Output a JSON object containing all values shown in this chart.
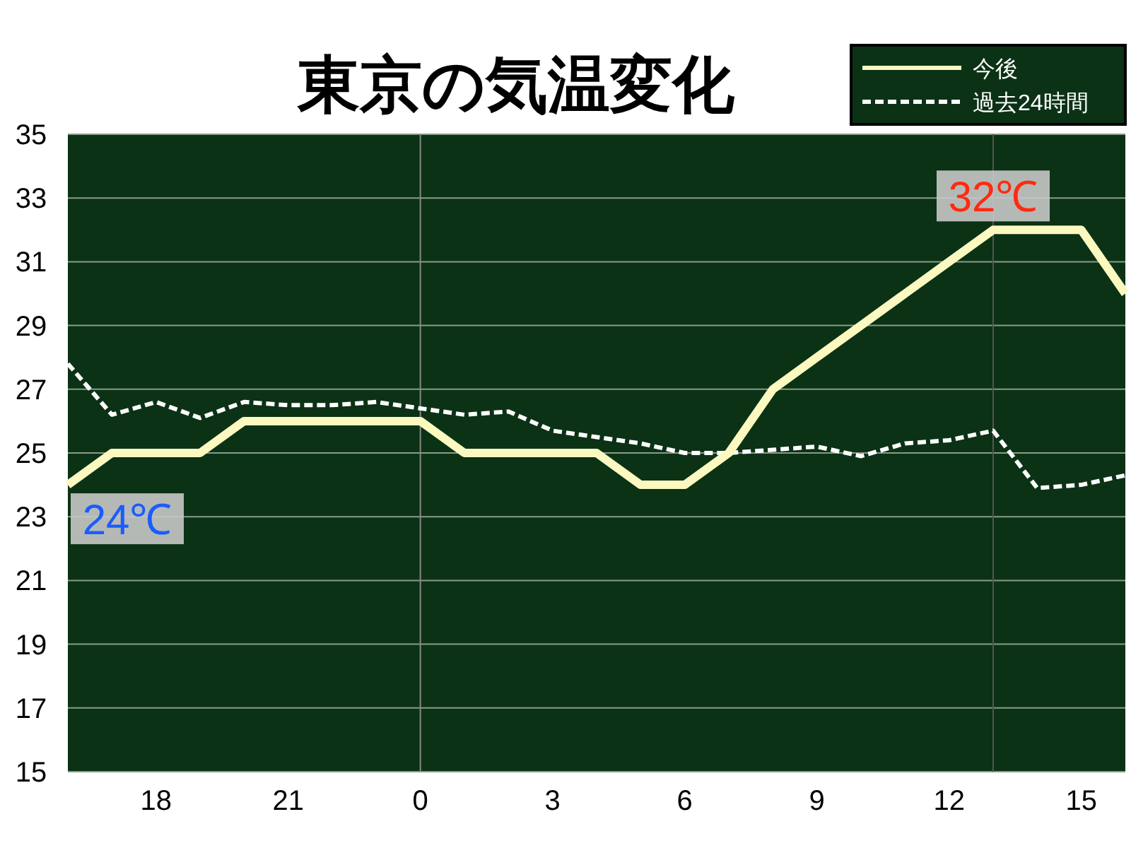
{
  "chart_data": {
    "type": "line",
    "title": "東京の気温変化",
    "categories": [
      null,
      null,
      "18",
      null,
      null,
      "21",
      null,
      null,
      "0",
      null,
      null,
      "3",
      null,
      null,
      "6",
      null,
      null,
      "9",
      null,
      null,
      "12",
      null,
      null,
      "15",
      null
    ],
    "series": [
      {
        "name": "今後",
        "color": "#fbf8c0",
        "line_style": "solid",
        "values": [
          24,
          25,
          25,
          25,
          26,
          26,
          26,
          26,
          26,
          25,
          25,
          25,
          25,
          24,
          24,
          25,
          27,
          28,
          29,
          30,
          31,
          32,
          32,
          32,
          30
        ]
      },
      {
        "name": "過去24時間",
        "color": "#ffffff",
        "line_style": "dashed",
        "values": [
          27.8,
          26.2,
          26.6,
          26.1,
          26.6,
          26.5,
          26.5,
          26.6,
          26.4,
          26.2,
          26.3,
          25.7,
          25.5,
          25.3,
          25.0,
          25.0,
          25.1,
          25.2,
          24.9,
          25.3,
          25.4,
          25.7,
          23.9,
          24.0,
          24.3
        ]
      }
    ],
    "ylim": [
      15,
      35
    ],
    "yticks": [
      15,
      17,
      19,
      21,
      23,
      25,
      27,
      29,
      31,
      33,
      35
    ],
    "grid": "y",
    "legend": "top right",
    "ref_lines": [
      {
        "axis": "x",
        "value": "0",
        "color": "#888888"
      }
    ],
    "annotations": [
      "24℃",
      "32℃"
    ]
  }
}
